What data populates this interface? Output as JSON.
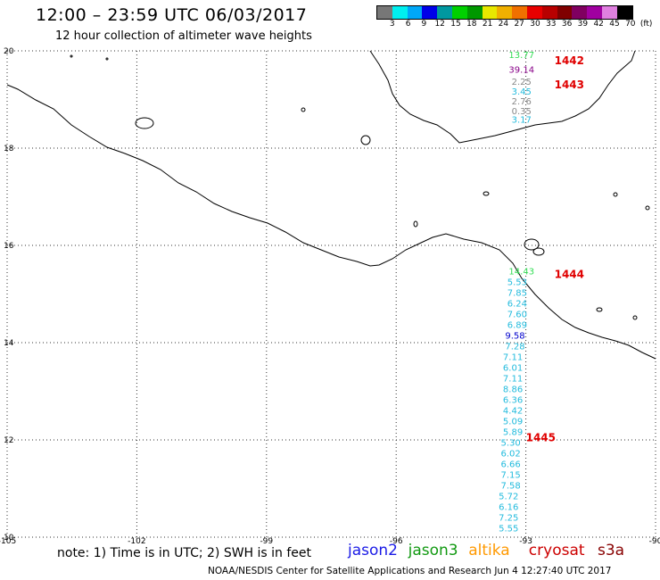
{
  "header": {
    "title": "12:00 – 23:59 UTC 06/03/2017",
    "subtitle": "12 hour collection of altimeter wave heights"
  },
  "colorbar": {
    "colors": [
      "#777777",
      "#00f0f0",
      "#00a8f8",
      "#0000e8",
      "#0098a0",
      "#00d000",
      "#009800",
      "#e8e800",
      "#f0b000",
      "#f07000",
      "#e80000",
      "#b80000",
      "#800000",
      "#800060",
      "#a000a0",
      "#e080e0",
      "#000000"
    ],
    "labels": [
      "3",
      "6",
      "9",
      "12",
      "15",
      "18",
      "21",
      "24",
      "27",
      "30",
      "33",
      "36",
      "39",
      "42",
      "45",
      "70",
      "(ft)"
    ]
  },
  "axes": {
    "lon_ticks": [
      "-105",
      "-102",
      "-99",
      "-96",
      "-93",
      "-90"
    ],
    "lat_ticks": [
      "20",
      "18",
      "16",
      "14",
      "12",
      "10"
    ]
  },
  "passes": [
    {
      "label": "1442",
      "lat": 19.8
    },
    {
      "label": "1443",
      "lat": 19.3
    },
    {
      "label": "1444",
      "lat": 15.4
    },
    {
      "label": "1445",
      "lat": 12.05
    }
  ],
  "measurements": [
    {
      "v": "13.77",
      "lon": -93.1,
      "lat": 19.85,
      "c": "#33dd55"
    },
    {
      "v": "39.14",
      "lon": -93.1,
      "lat": 19.55,
      "c": "#880088"
    },
    {
      "v": "2.25",
      "lon": -93.1,
      "lat": 19.3,
      "c": "#888888"
    },
    {
      "v": "3.45",
      "lon": -93.1,
      "lat": 19.1,
      "c": "#22bbdd"
    },
    {
      "v": "2.76",
      "lon": -93.1,
      "lat": 18.9,
      "c": "#888888"
    },
    {
      "v": "0.35",
      "lon": -93.1,
      "lat": 18.7,
      "c": "#888888"
    },
    {
      "v": "3.17",
      "lon": -93.1,
      "lat": 18.52,
      "c": "#22bbdd"
    },
    {
      "v": "14.43",
      "lon": -93.1,
      "lat": 15.4,
      "c": "#33dd55"
    },
    {
      "v": "5.53",
      "lon": -93.2,
      "lat": 15.18,
      "c": "#22bbdd"
    },
    {
      "v": "7.85",
      "lon": -93.2,
      "lat": 14.96,
      "c": "#22bbdd"
    },
    {
      "v": "6.24",
      "lon": -93.2,
      "lat": 14.74,
      "c": "#22bbdd"
    },
    {
      "v": "7.60",
      "lon": -93.2,
      "lat": 14.52,
      "c": "#22bbdd"
    },
    {
      "v": "6.89",
      "lon": -93.2,
      "lat": 14.3,
      "c": "#22bbdd"
    },
    {
      "v": "9.58",
      "lon": -93.25,
      "lat": 14.08,
      "c": "#0000cc"
    },
    {
      "v": "7.28",
      "lon": -93.25,
      "lat": 13.86,
      "c": "#22bbdd"
    },
    {
      "v": "7.11",
      "lon": -93.3,
      "lat": 13.64,
      "c": "#22bbdd"
    },
    {
      "v": "6.01",
      "lon": -93.3,
      "lat": 13.42,
      "c": "#22bbdd"
    },
    {
      "v": "7.11",
      "lon": -93.3,
      "lat": 13.2,
      "c": "#22bbdd"
    },
    {
      "v": "8.86",
      "lon": -93.3,
      "lat": 12.98,
      "c": "#22bbdd"
    },
    {
      "v": "6.36",
      "lon": -93.3,
      "lat": 12.76,
      "c": "#22bbdd"
    },
    {
      "v": "4.42",
      "lon": -93.3,
      "lat": 12.54,
      "c": "#22bbdd"
    },
    {
      "v": "5.09",
      "lon": -93.3,
      "lat": 12.32,
      "c": "#22bbdd"
    },
    {
      "v": "5.89",
      "lon": -93.3,
      "lat": 12.1,
      "c": "#22bbdd"
    },
    {
      "v": "5.30",
      "lon": -93.35,
      "lat": 11.88,
      "c": "#22bbdd"
    },
    {
      "v": "6.02",
      "lon": -93.35,
      "lat": 11.66,
      "c": "#22bbdd"
    },
    {
      "v": "6.66",
      "lon": -93.35,
      "lat": 11.44,
      "c": "#22bbdd"
    },
    {
      "v": "7.15",
      "lon": -93.35,
      "lat": 11.22,
      "c": "#22bbdd"
    },
    {
      "v": "7.58",
      "lon": -93.35,
      "lat": 11.0,
      "c": "#22bbdd"
    },
    {
      "v": "5.72",
      "lon": -93.4,
      "lat": 10.78,
      "c": "#22bbdd"
    },
    {
      "v": "6.16",
      "lon": -93.4,
      "lat": 10.56,
      "c": "#22bbdd"
    },
    {
      "v": "7.25",
      "lon": -93.4,
      "lat": 10.34,
      "c": "#22bbdd"
    },
    {
      "v": "5.55",
      "lon": -93.4,
      "lat": 10.12,
      "c": "#22bbdd"
    }
  ],
  "note": "note: 1) Time is in UTC; 2) SWH is in feet",
  "missions": [
    {
      "name": "jason2",
      "color": "#1a1ae6"
    },
    {
      "name": "jason3",
      "color": "#119911"
    },
    {
      "name": "altika",
      "color": "#ff9900"
    },
    {
      "name": "cryosat",
      "color": "#cc0000"
    },
    {
      "name": "s3a",
      "color": "#880000"
    }
  ],
  "footer": "NOAA/NESDIS Center for Satellite Applications and Research    Jun  4 12:27:40 UTC 2017"
}
